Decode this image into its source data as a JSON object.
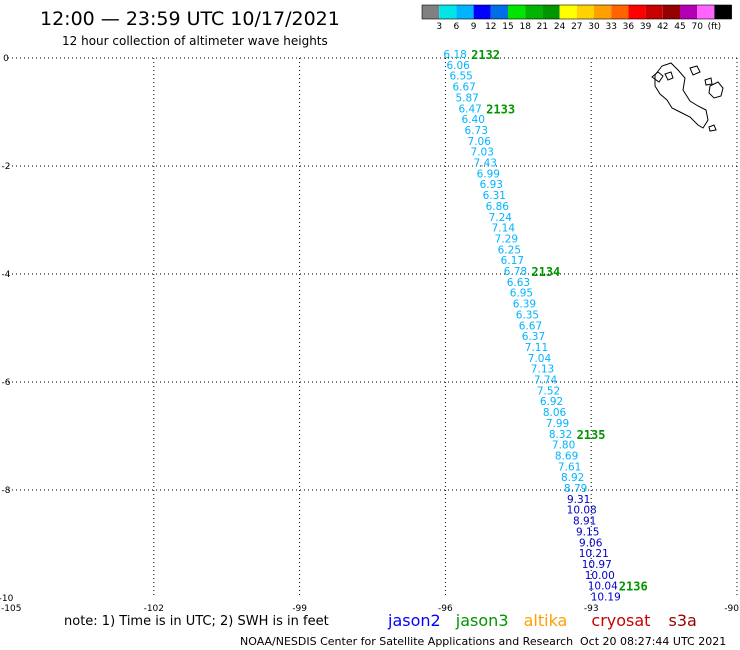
{
  "title": "12:00 — 23:59 UTC 10/17/2021",
  "subtitle": "12 hour collection of altimeter wave heights",
  "colorbar": {
    "ticks": [
      "3",
      "6",
      "9",
      "12",
      "15",
      "18",
      "21",
      "24",
      "27",
      "30",
      "33",
      "36",
      "39",
      "42",
      "45",
      "70",
      "(ft)"
    ],
    "colors": [
      "#808080",
      "#00e6e6",
      "#00b4ff",
      "#0000ff",
      "#006ee6",
      "#00e600",
      "#00b400",
      "#009600",
      "#ffff00",
      "#ffd200",
      "#ffa000",
      "#ff6400",
      "#ff0000",
      "#c80000",
      "#960000",
      "#b400b4",
      "#ff64ff",
      "#000000"
    ]
  },
  "map": {
    "lon_range": [
      -105,
      -90
    ],
    "lat_range": [
      -10,
      0
    ],
    "lon_ticks": [
      "-105",
      "-102",
      "-99",
      "-96",
      "-93",
      "-90"
    ],
    "lat_ticks": [
      "0",
      "-2",
      "-4",
      "-6",
      "-8",
      "-10"
    ],
    "grid": "dotted"
  },
  "track": {
    "start": [
      -95.8,
      0
    ],
    "end": [
      -92.7,
      -10
    ],
    "heights": [
      "6.18",
      "6.06",
      "6.55",
      "6.67",
      "5.87",
      "6.47",
      "6.40",
      "6.73",
      "7.06",
      "7.03",
      "7.43",
      "6.99",
      "6.93",
      "6.31",
      "6.86",
      "7.24",
      "7.14",
      "7.29",
      "6.25",
      "6.17",
      "6.78",
      "6.63",
      "6.95",
      "6.39",
      "6.35",
      "6.67",
      "6.37",
      "7.11",
      "7.04",
      "7.13",
      "7.74",
      "7.52",
      "6.92",
      "8.06",
      "7.99",
      "8.32",
      "7.80",
      "8.69",
      "7.61",
      "8.92",
      "8.79",
      "9.31",
      "10.08",
      "8.91",
      "9.15",
      "9.06",
      "10.21",
      "10.97",
      "10.00",
      "10.04",
      "10.19"
    ],
    "color_light": "#00b4ff",
    "color_dark": "#0000c8",
    "dark_from_index": 41
  },
  "time_labels": [
    {
      "text": "2132",
      "index": 0
    },
    {
      "text": "2133",
      "index": 5
    },
    {
      "text": "2134",
      "index": 20
    },
    {
      "text": "2135",
      "index": 35
    },
    {
      "text": "2136",
      "index": 49
    }
  ],
  "footer": {
    "note": "note: 1) Time is in UTC; 2) SWH is in feet",
    "satellites": [
      {
        "name": "jason2",
        "color": "#0000ff"
      },
      {
        "name": "jason3",
        "color": "#009600"
      },
      {
        "name": "altika",
        "color": "#ffa000"
      },
      {
        "name": "cryosat",
        "color": "#c80000"
      },
      {
        "name": "s3a",
        "color": "#960000"
      }
    ],
    "credit": "NOAA/NESDIS Center for Satellite Applications and Research",
    "timestamp": "Oct 20 08:27:44 UTC 2021"
  }
}
